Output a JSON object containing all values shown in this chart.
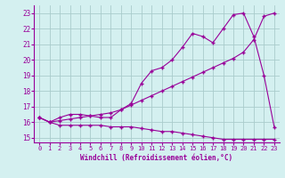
{
  "xlabel": "Windchill (Refroidissement éolien,°C)",
  "background_color": "#d4f0f0",
  "line_color": "#990099",
  "grid_color": "#aacccc",
  "xlim": [
    -0.5,
    23.5
  ],
  "ylim": [
    14.7,
    23.5
  ],
  "xticks": [
    0,
    1,
    2,
    3,
    4,
    5,
    6,
    7,
    8,
    9,
    10,
    11,
    12,
    13,
    14,
    15,
    16,
    17,
    18,
    19,
    20,
    21,
    22,
    23
  ],
  "yticks": [
    15,
    16,
    17,
    18,
    19,
    20,
    21,
    22,
    23
  ],
  "line1_x": [
    0,
    1,
    2,
    3,
    4,
    5,
    6,
    7,
    8,
    9,
    10,
    11,
    12,
    13,
    14,
    15,
    16,
    17,
    18,
    19,
    20,
    21,
    22,
    23
  ],
  "line1_y": [
    16.3,
    16.0,
    15.8,
    15.8,
    15.8,
    15.8,
    15.8,
    15.7,
    15.7,
    15.7,
    15.6,
    15.5,
    15.4,
    15.4,
    15.3,
    15.2,
    15.1,
    15.0,
    14.9,
    14.9,
    14.9,
    14.9,
    14.9,
    14.9
  ],
  "line2_x": [
    0,
    1,
    2,
    3,
    4,
    5,
    6,
    7,
    8,
    9,
    10,
    11,
    12,
    13,
    14,
    15,
    16,
    17,
    18,
    19,
    20,
    21,
    22,
    23
  ],
  "line2_y": [
    16.3,
    16.0,
    16.1,
    16.2,
    16.3,
    16.4,
    16.5,
    16.6,
    16.8,
    17.1,
    17.4,
    17.7,
    18.0,
    18.3,
    18.6,
    18.9,
    19.2,
    19.5,
    19.8,
    20.1,
    20.5,
    21.3,
    22.8,
    23.0
  ],
  "line3_x": [
    0,
    1,
    2,
    3,
    4,
    5,
    6,
    7,
    8,
    9,
    10,
    11,
    12,
    13,
    14,
    15,
    16,
    17,
    18,
    19,
    20,
    21,
    22,
    23
  ],
  "line3_y": [
    16.3,
    16.0,
    16.3,
    16.5,
    16.5,
    16.4,
    16.3,
    16.3,
    16.8,
    17.2,
    18.5,
    19.3,
    19.5,
    20.0,
    20.8,
    21.7,
    21.5,
    21.1,
    22.0,
    22.9,
    23.0,
    21.5,
    19.0,
    15.7
  ]
}
